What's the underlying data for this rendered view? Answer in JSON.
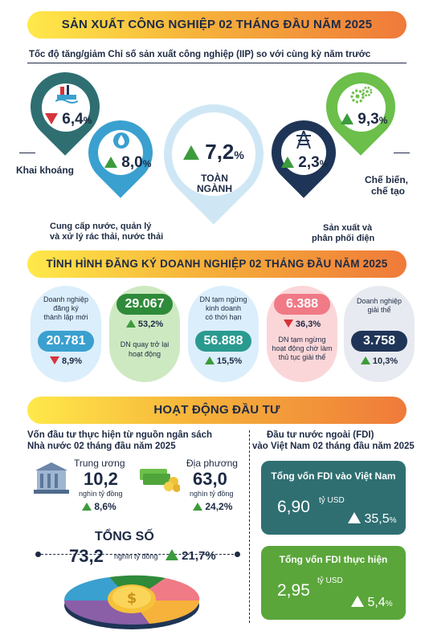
{
  "header": {
    "title": "SẢN XUẤT CÔNG NGHIỆP 02 THÁNG ĐẦU NĂM 2025"
  },
  "iip": {
    "subtitle": "Tốc độ tăng/giảm Chỉ số sản xuất công nghiệp (IIP) so với cùng kỳ năm trước",
    "mining": {
      "value": "6,4",
      "unit": "%",
      "direction": "down",
      "label": "Khai khoáng",
      "color": "#2f6f72"
    },
    "water": {
      "value": "8,0",
      "unit": "%",
      "direction": "up",
      "label_line1": "Cung cấp nước, quản lý",
      "label_line2": "và xử lý rác thải, nước thải",
      "color": "#3aa0cf"
    },
    "total": {
      "value": "7,2",
      "unit": "%",
      "direction": "up",
      "label": "TOÀN NGÀNH",
      "color": "#cfe7f5"
    },
    "electricity": {
      "value": "2,3",
      "unit": "%",
      "direction": "up",
      "label_line1": "Sản xuất và",
      "label_line2": "phân phối điện",
      "color": "#1f3557"
    },
    "manufacturing": {
      "value": "9,3",
      "unit": "%",
      "direction": "up",
      "label_line1": "Chế biến,",
      "label_line2": "chế tạo",
      "color": "#6cbf4a"
    }
  },
  "business": {
    "title": "TÌNH HÌNH ĐĂNG KÝ DOANH NGHIỆP 02 THÁNG ĐẦU NĂM 2025",
    "cards": [
      {
        "text1": "Doanh nghiệp",
        "text2": "đăng ký",
        "text3": "thành lập mới",
        "value": "20.781",
        "pct": "8,9%",
        "direction": "down",
        "bg": "#dbeefb",
        "big_bg": "#3aa0cf"
      },
      {
        "value": "29.067",
        "pct": "53,2%",
        "direction": "up",
        "text1": "DN quay trở lại",
        "text2": "hoạt động",
        "bg": "#cde9c1",
        "big_bg": "#2f8a3a"
      },
      {
        "text1": "DN tạm ngừng",
        "text2": "kinh doanh",
        "text3": "có thời hạn",
        "value": "56.888",
        "pct": "15,5%",
        "direction": "up",
        "bg": "#dbeefb",
        "big_bg": "#2a9a8f"
      },
      {
        "value": "6.388",
        "pct": "36,3%",
        "direction": "down",
        "text1": "DN tạm ngừng",
        "text2": "hoạt động chờ làm",
        "text3": "thủ tục giải thể",
        "bg": "#fbd6d8",
        "big_bg": "#f07a86"
      },
      {
        "text1": "Doanh nghiệp",
        "text2": "giải thể",
        "value": "3.758",
        "pct": "10,3%",
        "direction": "up",
        "bg": "#e7eaf0",
        "big_bg": "#1f3557"
      }
    ]
  },
  "investment": {
    "title": "HOẠT ĐỘNG ĐẦU TƯ",
    "state": {
      "title_line1": "Vốn đầu tư thực hiện từ nguồn ngân sách",
      "title_line2": "Nhà nước 02 tháng đầu năm 2025",
      "central": {
        "label": "Trung ương",
        "value": "10,2",
        "unit": "nghìn tỷ đồng",
        "pct": "8,6%"
      },
      "local": {
        "label": "Địa phương",
        "value": "63,0",
        "unit": "nghìn tỷ đồng",
        "pct": "24,2%"
      },
      "total": {
        "label": "TỔNG SỐ",
        "value": "73,2",
        "unit": "nghìn tỷ đồng",
        "pct": "21,7%"
      }
    },
    "fdi": {
      "title_line1": "Đầu tư nước ngoài (FDI)",
      "title_line2": "vào Việt Nam 02 tháng đầu năm 2025",
      "registered": {
        "label": "Tổng vốn FDI vào Việt Nam",
        "value": "6,90",
        "unit": "tỷ USD",
        "pct": "35,5",
        "pct_unit": "%",
        "bg": "#2f6f72"
      },
      "disbursed": {
        "label": "Tổng vốn FDI thực hiện",
        "value": "2,95",
        "unit": "tỷ USD",
        "pct": "5,4",
        "pct_unit": "%",
        "bg": "#5aa63a"
      }
    }
  },
  "icons": [
    "oil-rig-icon",
    "water-drop-icon",
    "power-tower-icon",
    "gears-icon",
    "government-building-icon",
    "money-stack-icon",
    "coin-pie-icon"
  ]
}
